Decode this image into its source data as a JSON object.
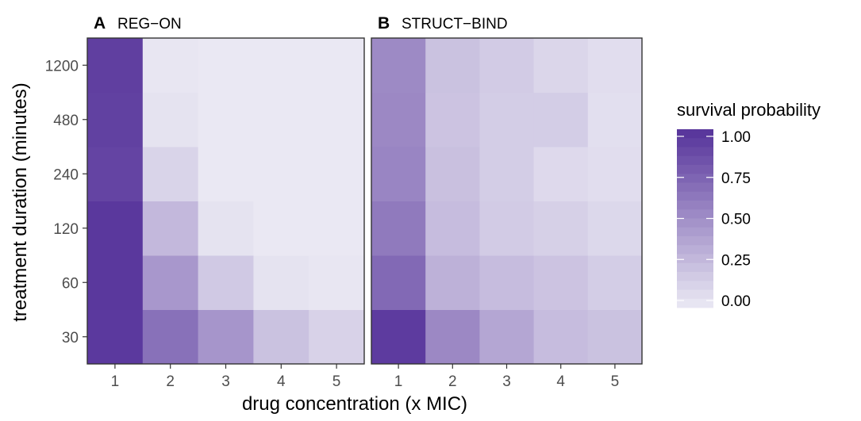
{
  "chart_data": {
    "type": "heatmap",
    "panels": [
      {
        "letter": "A",
        "title": "REG−ON",
        "x": [
          1,
          2,
          3,
          4,
          5
        ],
        "y": [
          30,
          60,
          120,
          240,
          480,
          1200
        ],
        "values": [
          [
            0.96,
            0.66,
            0.46,
            0.22,
            0.13
          ],
          [
            0.97,
            0.45,
            0.18,
            0.04,
            0.02
          ],
          [
            0.97,
            0.27,
            0.04,
            0.01,
            0.01
          ],
          [
            0.9,
            0.12,
            0.01,
            0.01,
            0.01
          ],
          [
            0.92,
            0.04,
            0.01,
            0.01,
            0.01
          ],
          [
            0.93,
            0.02,
            0.01,
            0.01,
            0.01
          ]
        ]
      },
      {
        "letter": "B",
        "title": "STRUCT−BIND",
        "x": [
          1,
          2,
          3,
          4,
          5
        ],
        "y": [
          30,
          60,
          120,
          240,
          480,
          1200
        ],
        "values": [
          [
            0.95,
            0.53,
            0.37,
            0.25,
            0.22
          ],
          [
            0.7,
            0.31,
            0.25,
            0.21,
            0.16
          ],
          [
            0.61,
            0.25,
            0.17,
            0.14,
            0.1
          ],
          [
            0.55,
            0.23,
            0.16,
            0.09,
            0.07
          ],
          [
            0.53,
            0.21,
            0.16,
            0.16,
            0.06
          ],
          [
            0.52,
            0.22,
            0.17,
            0.11,
            0.07
          ]
        ]
      }
    ],
    "xlabel": "drug concentration (x MIC)",
    "ylabel": "treatment duration (minutes)",
    "x_ticks": [
      "1",
      "2",
      "3",
      "4",
      "5"
    ],
    "y_ticks": [
      "30",
      "60",
      "120",
      "240",
      "480",
      "1200"
    ],
    "legend": {
      "title": "survival probability",
      "ticks": [
        {
          "value": 1.0,
          "label": "1.00"
        },
        {
          "value": 0.75,
          "label": "0.75"
        },
        {
          "value": 0.5,
          "label": "0.50"
        },
        {
          "value": 0.25,
          "label": "0.25"
        },
        {
          "value": 0.0,
          "label": "0.00"
        }
      ],
      "placement": "right"
    },
    "color_low": "#ebeaf4",
    "color_high": "#55329a",
    "zlim": [
      0,
      1
    ]
  }
}
